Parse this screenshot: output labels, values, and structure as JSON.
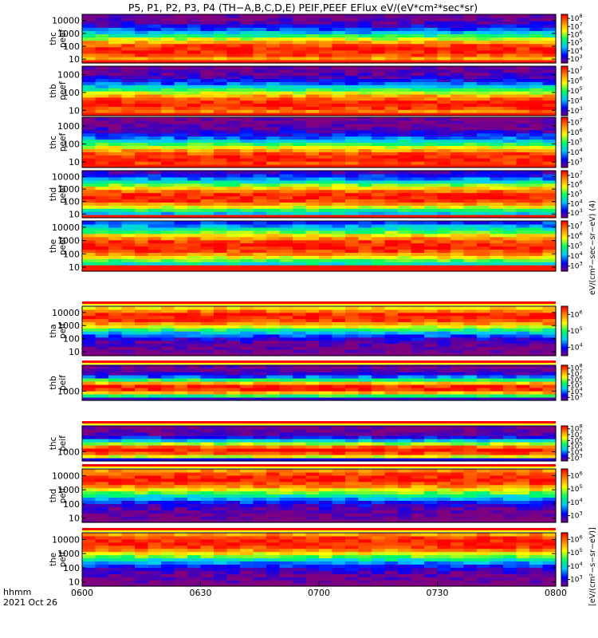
{
  "chart_data": {
    "type": "heatmap",
    "title": "P5, P1, P2, P3, P4 (TH−A,B,C,D,E) PEIF,PEEF EFlux eV/(eV*cm²*sec*sr)",
    "xaxis": {
      "label_line1": "hhmm",
      "label_line2": "2021 Oct 26",
      "ticks": [
        "0600",
        "0630",
        "0700",
        "0730",
        "0800"
      ],
      "range": [
        "06:00",
        "08:00"
      ]
    },
    "colorbar_units": "[eV/(cm²−s−sr−eV)]",
    "colorbar_units_electron": "eV/(cm²−sec−sr−eV) (4)",
    "colormap": [
      "#80007f",
      "#0000ff",
      "#00c8ff",
      "#00ff60",
      "#ffff00",
      "#ff8800",
      "#ff0000"
    ],
    "panels": [
      {
        "label": "thc",
        "sublabel": "peef",
        "species": "electron",
        "yscale": "log",
        "ylim": [
          5,
          30000
        ],
        "yticks": [
          "10",
          "100",
          "1000",
          "10000"
        ],
        "colorbar_exps": [
          3,
          4,
          5,
          6,
          7,
          8
        ],
        "peak_log_energy": 1.7,
        "spread": 1.35,
        "floor_log_energy": 1.0
      },
      {
        "label": "thb",
        "sublabel": "peef",
        "species": "electron",
        "yscale": "log",
        "ylim": [
          5,
          3000
        ],
        "yticks": [
          "10",
          "100",
          "1000"
        ],
        "colorbar_exps": [
          3,
          4,
          5,
          6,
          7
        ],
        "peak_log_energy": 1.35,
        "spread": 1.0,
        "floor_log_energy": 0.9
      },
      {
        "label": "thc",
        "sublabel": "peef",
        "species": "electron",
        "yscale": "log",
        "ylim": [
          5,
          3000
        ],
        "yticks": [
          "10",
          "100",
          "1000"
        ],
        "colorbar_exps": [
          3,
          4,
          5,
          6,
          7
        ],
        "peak_log_energy": 1.2,
        "spread": 1.0,
        "floor_log_energy": 0.9
      },
      {
        "label": "thd",
        "sublabel": "peef",
        "species": "electron",
        "yscale": "log",
        "ylim": [
          5,
          30000
        ],
        "yticks": [
          "10",
          "100",
          "1000",
          "10000"
        ],
        "colorbar_exps": [
          3,
          4,
          5,
          6,
          7
        ],
        "peak_log_energy": 2.4,
        "spread": 1.3,
        "floor_log_energy": 1.0
      },
      {
        "label": "the",
        "sublabel": "peef",
        "species": "electron",
        "yscale": "log",
        "ylim": [
          5,
          30000
        ],
        "yticks": [
          "10",
          "100",
          "1000",
          "10000"
        ],
        "colorbar_exps": [
          3,
          4,
          5,
          6,
          7
        ],
        "peak_log_energy": 2.6,
        "spread": 1.4,
        "floor_log_energy": 1.1
      },
      {
        "label": "tha",
        "sublabel": "peif",
        "species": "ion",
        "yscale": "log",
        "ylim": [
          5,
          30000
        ],
        "yticks": [
          "10",
          "100",
          "1000",
          "10000"
        ],
        "colorbar_exps": [
          4,
          5,
          6
        ],
        "peak_log_energy": 3.7,
        "spread": 1.2,
        "floor_log_energy": 1.0
      },
      {
        "label": "thb",
        "sublabel": "peif",
        "species": "ion",
        "yscale": "log",
        "ylim": [
          300,
          30000
        ],
        "yticks": [
          "1000"
        ],
        "colorbar_exps": [
          3,
          4,
          5,
          6,
          7,
          8
        ],
        "peak_log_energy": 3.2,
        "spread": 0.55,
        "floor_log_energy": 2.6
      },
      {
        "label": "thc",
        "sublabel": "peif",
        "species": "ion",
        "yscale": "log",
        "ylim": [
          300,
          30000
        ],
        "yticks": [
          "1000"
        ],
        "colorbar_exps": [
          3,
          4,
          5,
          6,
          7,
          8
        ],
        "peak_log_energy": 3.1,
        "spread": 0.55,
        "floor_log_energy": 2.6
      },
      {
        "label": "thd",
        "sublabel": "peif",
        "species": "ion",
        "yscale": "log",
        "ylim": [
          5,
          30000
        ],
        "yticks": [
          "10",
          "100",
          "1000",
          "10000"
        ],
        "colorbar_exps": [
          3,
          4,
          5,
          6
        ],
        "peak_log_energy": 3.8,
        "spread": 1.3,
        "floor_log_energy": 1.0
      },
      {
        "label": "the",
        "sublabel": "peif",
        "species": "ion",
        "yscale": "log",
        "ylim": [
          5,
          30000
        ],
        "yticks": [
          "10",
          "100",
          "1000",
          "10000"
        ],
        "colorbar_exps": [
          3,
          4,
          5,
          6
        ],
        "peak_log_energy": 3.8,
        "spread": 1.3,
        "floor_log_energy": 1.0
      }
    ]
  }
}
